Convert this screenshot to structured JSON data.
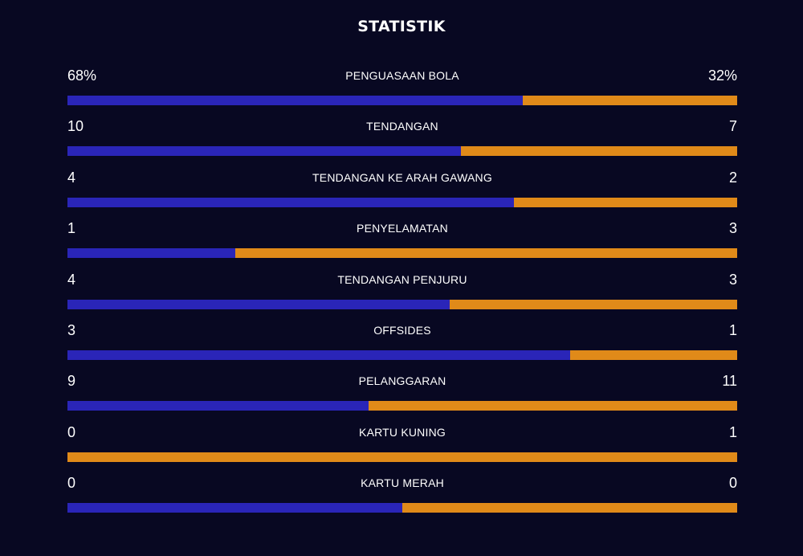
{
  "header": {
    "title": "STATISTIK"
  },
  "colors": {
    "background": "#080822",
    "home": "#2a25b8",
    "away": "#e08a19"
  },
  "stats": [
    {
      "label": "PENGUASAAN BOLA",
      "home": "68%",
      "away": "32%",
      "home_share": 0.68
    },
    {
      "label": "TENDANGAN",
      "home": "10",
      "away": "7",
      "home_share": 0.588
    },
    {
      "label": "TENDANGAN KE ARAH GAWANG",
      "home": "4",
      "away": "2",
      "home_share": 0.667
    },
    {
      "label": "PENYELAMATAN",
      "home": "1",
      "away": "3",
      "home_share": 0.25
    },
    {
      "label": "TENDANGAN PENJURU",
      "home": "4",
      "away": "3",
      "home_share": 0.571
    },
    {
      "label": "OFFSIDES",
      "home": "3",
      "away": "1",
      "home_share": 0.75
    },
    {
      "label": "PELANGGARAN",
      "home": "9",
      "away": "11",
      "home_share": 0.45
    },
    {
      "label": "KARTU KUNING",
      "home": "0",
      "away": "1",
      "home_share": 0.0
    },
    {
      "label": "KARTU MERAH",
      "home": "0",
      "away": "0",
      "home_share": 0.5
    }
  ]
}
